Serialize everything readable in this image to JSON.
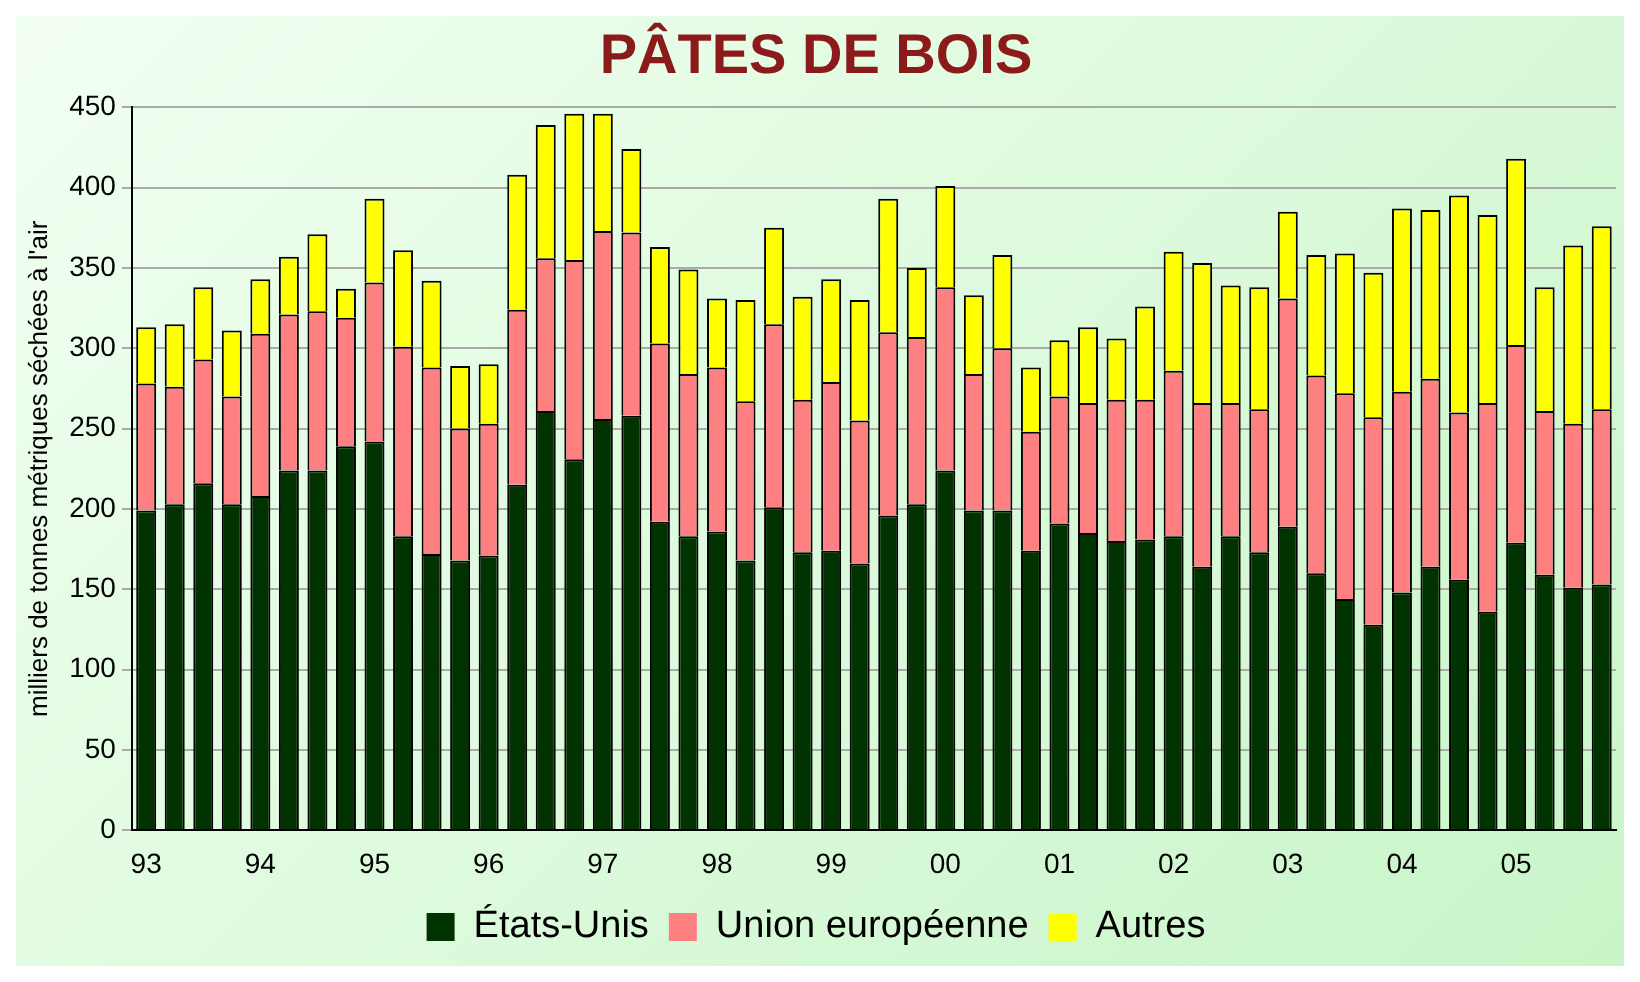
{
  "chart_data": {
    "type": "bar",
    "title": "PÂTES DE BOIS",
    "ylabel": "milliers de tonnes métriques séchées à l'air",
    "stacked": true,
    "grid": "y",
    "legend": "bottom",
    "categories": [
      "93",
      null,
      null,
      null,
      "94",
      null,
      null,
      null,
      "95",
      null,
      null,
      null,
      "96",
      null,
      null,
      null,
      "97",
      null,
      null,
      null,
      "98",
      null,
      null,
      null,
      "99",
      null,
      null,
      null,
      "00",
      null,
      null,
      null,
      "01",
      null,
      null,
      null,
      "02",
      null,
      null,
      null,
      "03",
      null,
      null,
      null,
      "04",
      null,
      null,
      null,
      "05",
      null,
      null,
      null
    ],
    "ylim": [
      0,
      450
    ],
    "yticks": [
      0,
      50,
      100,
      150,
      200,
      250,
      300,
      350,
      400,
      450
    ],
    "series": [
      {
        "name": "États-Unis",
        "color": "#003300",
        "values": [
          199,
          203,
          216,
          203,
          208,
          224,
          224,
          239,
          242,
          183,
          172,
          168,
          171,
          215,
          261,
          231,
          256,
          258,
          192,
          183,
          186,
          168,
          201,
          173,
          174,
          166,
          196,
          203,
          224,
          199,
          199,
          174,
          191,
          185,
          180,
          181,
          183,
          164,
          183,
          173,
          189,
          160,
          144,
          128,
          148,
          164,
          156,
          136,
          179,
          159,
          151,
          153
        ]
      },
      {
        "name": "Union européenne",
        "color": "#ff8080",
        "values": [
          79,
          73,
          77,
          67,
          101,
          97,
          99,
          80,
          99,
          118,
          116,
          82,
          82,
          109,
          95,
          124,
          117,
          114,
          111,
          101,
          102,
          99,
          114,
          95,
          105,
          89,
          114,
          104,
          114,
          85,
          101,
          74,
          79,
          81,
          88,
          87,
          103,
          102,
          83,
          89,
          142,
          123,
          128,
          129,
          125,
          117,
          104,
          130,
          123,
          102,
          102,
          109
        ]
      },
      {
        "name": "Autres",
        "color": "#ffff00",
        "values": [
          35,
          39,
          45,
          41,
          34,
          36,
          48,
          18,
          52,
          60,
          54,
          39,
          37,
          84,
          83,
          91,
          73,
          52,
          60,
          65,
          43,
          63,
          60,
          64,
          64,
          75,
          83,
          43,
          63,
          49,
          58,
          40,
          35,
          47,
          38,
          58,
          74,
          87,
          73,
          76,
          54,
          75,
          87,
          90,
          114,
          105,
          135,
          117,
          116,
          77,
          111,
          114
        ]
      }
    ]
  }
}
